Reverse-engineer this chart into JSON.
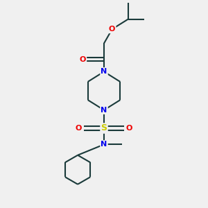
{
  "background_color": "#f0f0f0",
  "bond_color": "#1a3a3a",
  "N_color": "#0000ee",
  "O_color": "#ee0000",
  "S_color": "#cccc00",
  "line_width": 1.5,
  "figsize": [
    3.0,
    3.0
  ],
  "dpi": 100,
  "xlim": [
    0,
    10
  ],
  "ylim": [
    0,
    10
  ]
}
